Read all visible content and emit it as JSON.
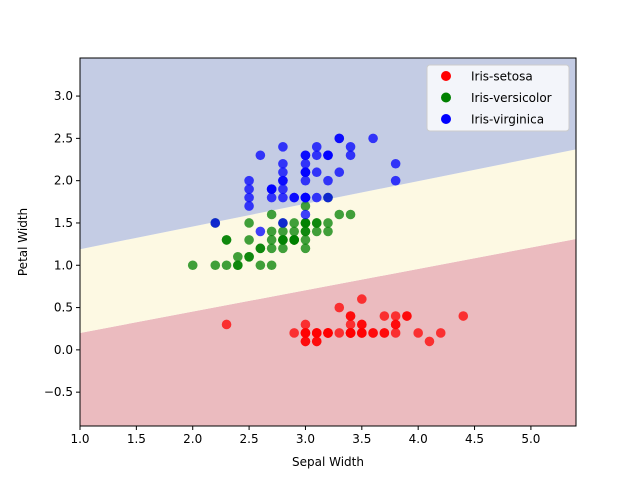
{
  "chart_data": {
    "type": "scatter",
    "title": "",
    "xlabel": "Sepal Width",
    "ylabel": "Petal Width",
    "xlim": [
      1.0,
      5.4
    ],
    "ylim": [
      -0.9,
      3.45
    ],
    "xticks": [
      "1.0",
      "1.5",
      "2.0",
      "2.5",
      "3.0",
      "3.5",
      "4.0",
      "4.5",
      "5.0"
    ],
    "yticks": [
      "−0.5",
      "0.0",
      "0.5",
      "1.0",
      "1.5",
      "2.0",
      "2.5",
      "3.0"
    ],
    "grid": false,
    "legend_position": "top-right",
    "decision_regions": [
      {
        "class": "Iris-setosa",
        "color": "#ebbbbf",
        "upper_boundary": [
          [
            1.0,
            0.2
          ],
          [
            5.4,
            1.31
          ]
        ]
      },
      {
        "class": "Iris-versicolor",
        "color": "#fdf9e3",
        "upper_boundary": [
          [
            1.0,
            1.19
          ],
          [
            5.4,
            2.37
          ]
        ]
      },
      {
        "class": "Iris-virginica",
        "color": "#c4cce4"
      }
    ],
    "series": [
      {
        "name": "Iris-setosa",
        "color": "#ff0000",
        "points": [
          [
            3.5,
            0.2
          ],
          [
            3.0,
            0.2
          ],
          [
            3.2,
            0.2
          ],
          [
            3.1,
            0.2
          ],
          [
            3.6,
            0.2
          ],
          [
            3.9,
            0.4
          ],
          [
            3.4,
            0.3
          ],
          [
            3.4,
            0.2
          ],
          [
            2.9,
            0.2
          ],
          [
            3.1,
            0.1
          ],
          [
            3.7,
            0.2
          ],
          [
            3.4,
            0.2
          ],
          [
            3.0,
            0.1
          ],
          [
            3.0,
            0.1
          ],
          [
            4.0,
            0.2
          ],
          [
            4.4,
            0.4
          ],
          [
            3.9,
            0.4
          ],
          [
            3.5,
            0.3
          ],
          [
            3.8,
            0.3
          ],
          [
            3.8,
            0.3
          ],
          [
            3.4,
            0.2
          ],
          [
            3.7,
            0.4
          ],
          [
            3.6,
            0.2
          ],
          [
            3.3,
            0.5
          ],
          [
            3.4,
            0.2
          ],
          [
            3.0,
            0.2
          ],
          [
            3.4,
            0.4
          ],
          [
            3.5,
            0.2
          ],
          [
            3.4,
            0.2
          ],
          [
            3.2,
            0.2
          ],
          [
            3.1,
            0.2
          ],
          [
            3.4,
            0.4
          ],
          [
            4.1,
            0.1
          ],
          [
            4.2,
            0.2
          ],
          [
            3.1,
            0.2
          ],
          [
            3.2,
            0.2
          ],
          [
            3.5,
            0.2
          ],
          [
            3.1,
            0.1
          ],
          [
            3.0,
            0.2
          ],
          [
            3.4,
            0.2
          ],
          [
            3.5,
            0.3
          ],
          [
            2.3,
            0.3
          ],
          [
            3.2,
            0.2
          ],
          [
            3.5,
            0.6
          ],
          [
            3.8,
            0.4
          ],
          [
            3.0,
            0.3
          ],
          [
            3.8,
            0.2
          ],
          [
            3.2,
            0.2
          ],
          [
            3.7,
            0.2
          ],
          [
            3.3,
            0.2
          ]
        ]
      },
      {
        "name": "Iris-versicolor",
        "color": "#008000",
        "points": [
          [
            3.2,
            1.4
          ],
          [
            3.2,
            1.5
          ],
          [
            3.1,
            1.5
          ],
          [
            2.3,
            1.3
          ],
          [
            2.8,
            1.5
          ],
          [
            2.8,
            1.3
          ],
          [
            3.3,
            1.6
          ],
          [
            2.4,
            1.0
          ],
          [
            2.9,
            1.3
          ],
          [
            2.7,
            1.4
          ],
          [
            2.0,
            1.0
          ],
          [
            3.0,
            1.5
          ],
          [
            2.2,
            1.0
          ],
          [
            2.9,
            1.4
          ],
          [
            2.9,
            1.3
          ],
          [
            3.1,
            1.4
          ],
          [
            3.0,
            1.5
          ],
          [
            2.7,
            1.0
          ],
          [
            2.2,
            1.5
          ],
          [
            2.5,
            1.1
          ],
          [
            3.2,
            1.8
          ],
          [
            2.8,
            1.3
          ],
          [
            2.5,
            1.5
          ],
          [
            2.8,
            1.2
          ],
          [
            2.9,
            1.3
          ],
          [
            3.0,
            1.4
          ],
          [
            2.8,
            1.4
          ],
          [
            3.0,
            1.7
          ],
          [
            2.9,
            1.5
          ],
          [
            2.6,
            1.0
          ],
          [
            2.4,
            1.1
          ],
          [
            2.4,
            1.0
          ],
          [
            2.7,
            1.2
          ],
          [
            2.7,
            1.6
          ],
          [
            3.0,
            1.5
          ],
          [
            3.4,
            1.6
          ],
          [
            3.1,
            1.5
          ],
          [
            2.3,
            1.3
          ],
          [
            3.0,
            1.3
          ],
          [
            2.5,
            1.3
          ],
          [
            2.6,
            1.2
          ],
          [
            3.0,
            1.4
          ],
          [
            2.6,
            1.2
          ],
          [
            2.3,
            1.0
          ],
          [
            2.7,
            1.3
          ],
          [
            3.0,
            1.2
          ],
          [
            2.9,
            1.3
          ],
          [
            2.9,
            1.3
          ],
          [
            2.5,
            1.1
          ],
          [
            2.8,
            1.3
          ]
        ]
      },
      {
        "name": "Iris-virginica",
        "color": "#0000ff",
        "points": [
          [
            3.3,
            2.5
          ],
          [
            2.7,
            1.9
          ],
          [
            3.0,
            2.1
          ],
          [
            2.9,
            1.8
          ],
          [
            3.0,
            2.2
          ],
          [
            3.0,
            2.1
          ],
          [
            2.5,
            1.7
          ],
          [
            2.9,
            1.8
          ],
          [
            2.5,
            1.8
          ],
          [
            3.6,
            2.5
          ],
          [
            3.2,
            2.0
          ],
          [
            2.7,
            1.9
          ],
          [
            3.0,
            2.1
          ],
          [
            2.5,
            2.0
          ],
          [
            2.8,
            2.4
          ],
          [
            3.2,
            2.3
          ],
          [
            3.0,
            1.8
          ],
          [
            3.8,
            2.2
          ],
          [
            2.6,
            2.3
          ],
          [
            2.2,
            1.5
          ],
          [
            3.2,
            2.3
          ],
          [
            2.8,
            2.0
          ],
          [
            2.8,
            2.0
          ],
          [
            2.7,
            1.8
          ],
          [
            3.3,
            2.1
          ],
          [
            3.2,
            1.8
          ],
          [
            2.8,
            1.8
          ],
          [
            3.0,
            1.8
          ],
          [
            2.8,
            2.1
          ],
          [
            3.0,
            1.6
          ],
          [
            2.8,
            1.9
          ],
          [
            3.8,
            2.0
          ],
          [
            2.8,
            2.2
          ],
          [
            2.8,
            1.5
          ],
          [
            2.6,
            1.4
          ],
          [
            3.0,
            2.3
          ],
          [
            3.4,
            2.4
          ],
          [
            3.1,
            1.8
          ],
          [
            3.0,
            1.8
          ],
          [
            3.1,
            2.1
          ],
          [
            3.1,
            2.4
          ],
          [
            3.1,
            2.3
          ],
          [
            2.7,
            1.9
          ],
          [
            3.2,
            2.3
          ],
          [
            3.3,
            2.5
          ],
          [
            3.0,
            2.3
          ],
          [
            2.5,
            1.9
          ],
          [
            3.0,
            2.0
          ],
          [
            3.4,
            2.3
          ],
          [
            3.0,
            1.8
          ]
        ]
      }
    ]
  }
}
